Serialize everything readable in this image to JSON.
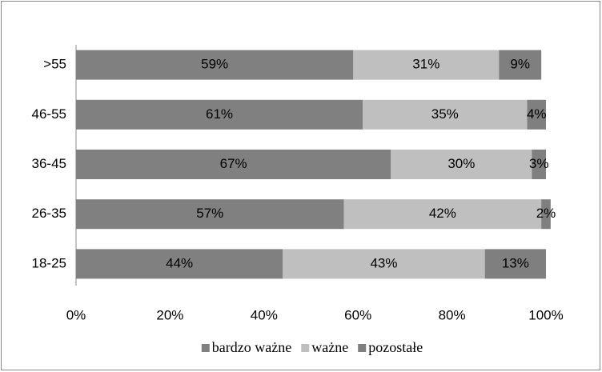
{
  "chart_data": {
    "type": "stacked-bar-horizontal",
    "categories": [
      "18-25",
      "26-35",
      "36-45",
      "46-55",
      ">55"
    ],
    "series": [
      {
        "name": "bardzo ważne",
        "color": "#808080",
        "values": [
          44,
          57,
          67,
          61,
          59
        ],
        "value_labels": [
          "44%",
          "57%",
          "67%",
          "61%",
          "59%"
        ]
      },
      {
        "name": "ważne",
        "color": "#bfbfbf",
        "values": [
          43,
          42,
          30,
          35,
          31
        ],
        "value_labels": [
          "43%",
          "42%",
          "30%",
          "35%",
          "31%"
        ]
      },
      {
        "name": "pozostałe",
        "color": "#7f7f7f",
        "values": [
          13,
          2,
          3,
          4,
          9
        ],
        "value_labels": [
          "13%",
          "2%",
          "3%",
          "4%",
          "9%"
        ]
      }
    ],
    "xlim": [
      0,
      100
    ],
    "xticks": [
      {
        "value": 0,
        "label": "0%"
      },
      {
        "value": 20,
        "label": "20%"
      },
      {
        "value": 40,
        "label": "40%"
      },
      {
        "value": 60,
        "label": "60%"
      },
      {
        "value": 80,
        "label": "80%"
      },
      {
        "value": 100,
        "label": "100%"
      }
    ],
    "grid": false,
    "legend": "bottom"
  }
}
